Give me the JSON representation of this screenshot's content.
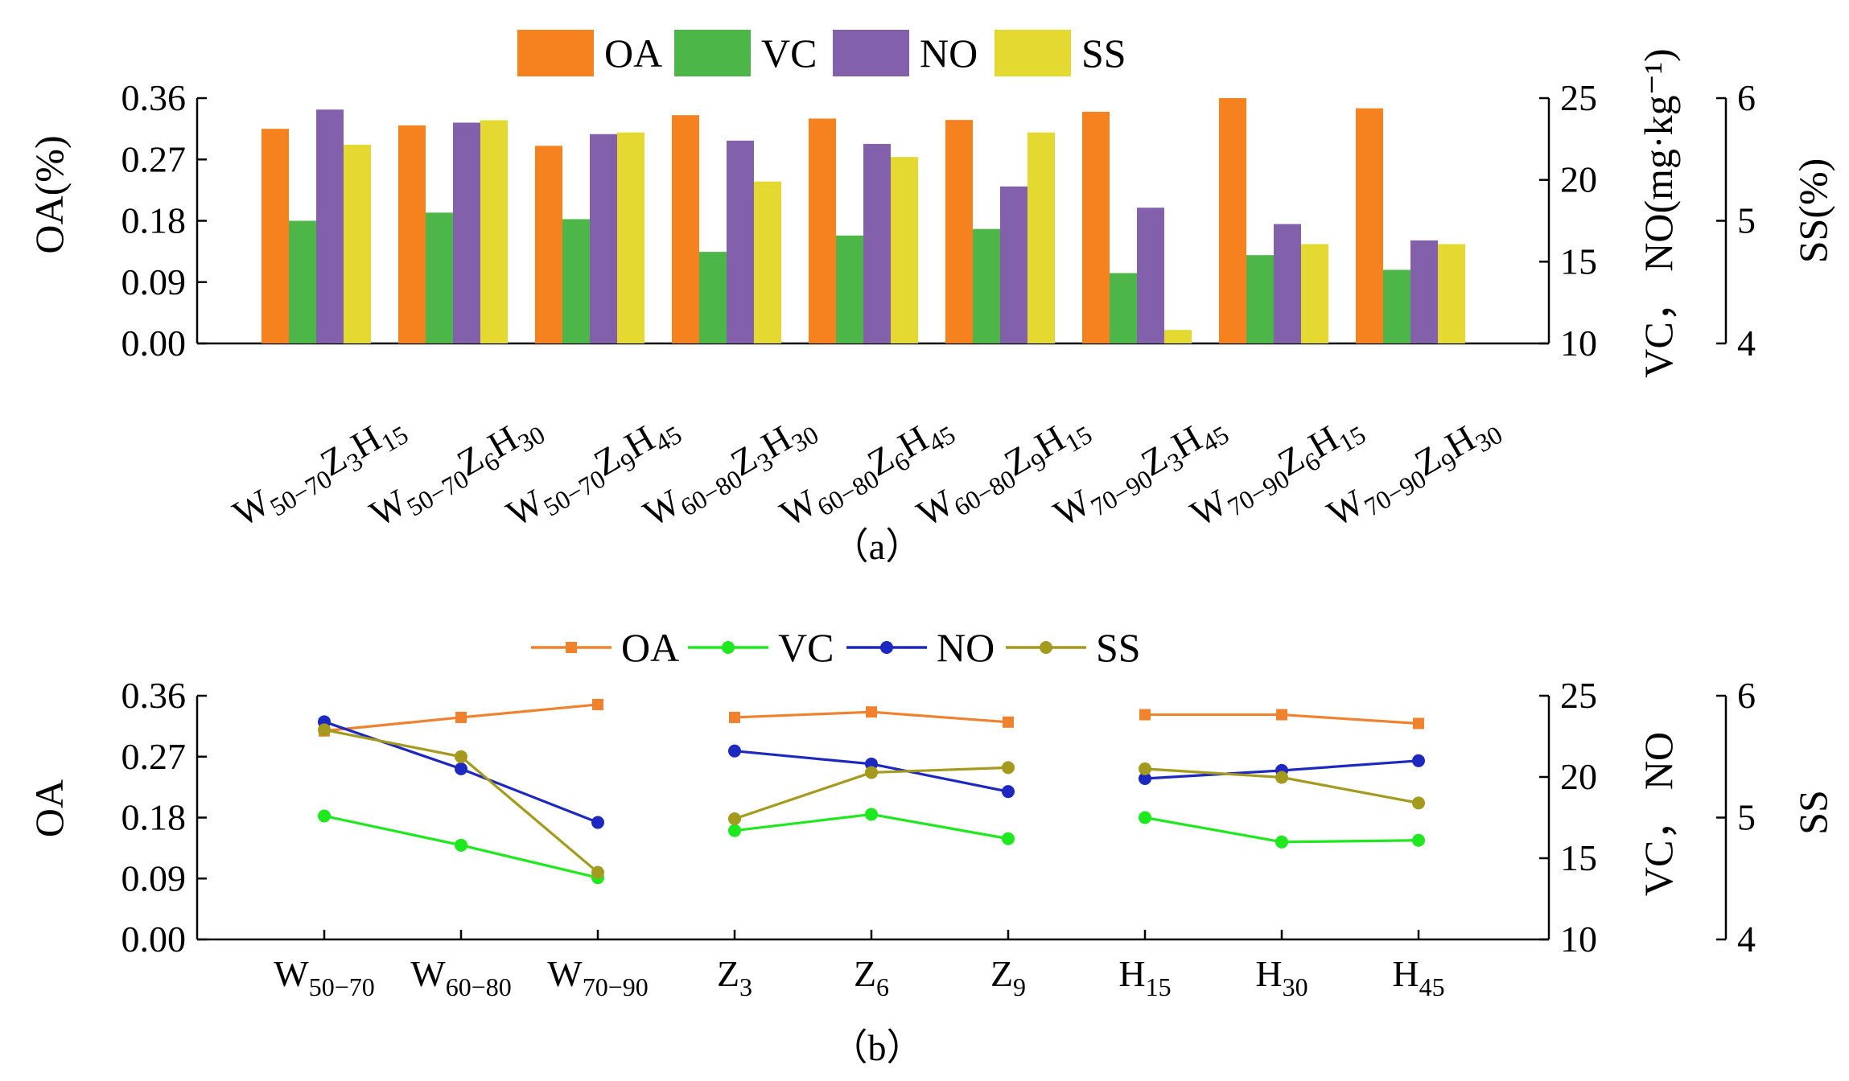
{
  "colors": {
    "bar_OA": "#F5821F",
    "bar_VC": "#4CB748",
    "bar_NO": "#8360AC",
    "bar_SS": "#E4D931",
    "line_OA": "#F0822E",
    "line_VC": "#1EE81E",
    "line_NO": "#1C28C0",
    "line_SS": "#A39A1E",
    "axis": "#000000"
  },
  "chart_data": [
    {
      "id": "a",
      "type": "bar",
      "caption": "（a）",
      "ylabel_left": "OA(%)",
      "ylabel_right1": "VC，  NO(mg·kg⁻¹)",
      "ylabel_right2": "SS(%)",
      "axes": {
        "left": {
          "min": 0,
          "max": 0.36,
          "ticks": [
            "0.00",
            "0.09",
            "0.18",
            "0.27",
            "0.36"
          ]
        },
        "right1": {
          "min": 10,
          "max": 25,
          "ticks": [
            "10",
            "15",
            "20",
            "25"
          ]
        },
        "right2": {
          "min": 4,
          "max": 6,
          "ticks": [
            "4",
            "5",
            "6"
          ]
        }
      },
      "categories": [
        {
          "main1": "W",
          "sub1": "50−70",
          "main2": "Z",
          "sub2": "3",
          "main3": "H",
          "sub3": "15"
        },
        {
          "main1": "W",
          "sub1": "50−70",
          "main2": "Z",
          "sub2": "6",
          "main3": "H",
          "sub3": "30"
        },
        {
          "main1": "W",
          "sub1": "50−70",
          "main2": "Z",
          "sub2": "9",
          "main3": "H",
          "sub3": "45"
        },
        {
          "main1": "W",
          "sub1": "60−80",
          "main2": "Z",
          "sub2": "3",
          "main3": "H",
          "sub3": "30"
        },
        {
          "main1": "W",
          "sub1": "60−80",
          "main2": "Z",
          "sub2": "6",
          "main3": "H",
          "sub3": "45"
        },
        {
          "main1": "W",
          "sub1": "60−80",
          "main2": "Z",
          "sub2": "9",
          "main3": "H",
          "sub3": "15"
        },
        {
          "main1": "W",
          "sub1": "70−90",
          "main2": "Z",
          "sub2": "3",
          "main3": "H",
          "sub3": "45"
        },
        {
          "main1": "W",
          "sub1": "70−90",
          "main2": "Z",
          "sub2": "6",
          "main3": "H",
          "sub3": "15"
        },
        {
          "main1": "W",
          "sub1": "70−90",
          "main2": "Z",
          "sub2": "9",
          "main3": "H",
          "sub3": "30"
        }
      ],
      "series": [
        {
          "name": "OA",
          "axis": "left",
          "values": [
            0.315,
            0.32,
            0.29,
            0.335,
            0.33,
            0.328,
            0.34,
            0.36,
            0.345
          ]
        },
        {
          "name": "VC",
          "axis": "right1",
          "values": [
            17.5,
            18.0,
            17.6,
            15.6,
            16.6,
            17.0,
            14.3,
            15.4,
            14.5
          ]
        },
        {
          "name": "NO",
          "axis": "right1",
          "values": [
            24.3,
            23.5,
            22.8,
            22.4,
            22.2,
            19.6,
            18.3,
            17.3,
            16.3
          ]
        },
        {
          "name": "SS",
          "axis": "right2",
          "values": [
            5.62,
            5.82,
            5.72,
            5.32,
            5.52,
            5.72,
            4.11,
            4.81,
            4.81
          ]
        }
      ]
    },
    {
      "id": "b",
      "type": "line",
      "caption": "（b）",
      "ylabel_left": "OA",
      "ylabel_right1": "VC，  NO",
      "ylabel_right2": "SS",
      "axes": {
        "left": {
          "min": 0,
          "max": 0.36,
          "ticks": [
            "0.00",
            "0.09",
            "0.18",
            "0.27",
            "0.36"
          ]
        },
        "right1": {
          "min": 10,
          "max": 25,
          "ticks": [
            "10",
            "15",
            "20",
            "25"
          ]
        },
        "right2": {
          "min": 4,
          "max": 6,
          "ticks": [
            "4",
            "5",
            "6"
          ]
        }
      },
      "categories": [
        {
          "main": "W",
          "sub": "50−70"
        },
        {
          "main": "W",
          "sub": "60−80"
        },
        {
          "main": "W",
          "sub": "70−90"
        },
        {
          "main": "Z",
          "sub": "3"
        },
        {
          "main": "Z",
          "sub": "6"
        },
        {
          "main": "Z",
          "sub": "9"
        },
        {
          "main": "H",
          "sub": "15"
        },
        {
          "main": "H",
          "sub": "30"
        },
        {
          "main": "H",
          "sub": "45"
        }
      ],
      "groups": [
        [
          0,
          1,
          2
        ],
        [
          3,
          4,
          5
        ],
        [
          6,
          7,
          8
        ]
      ],
      "series": [
        {
          "name": "OA",
          "axis": "left",
          "marker": "square",
          "values": [
            0.308,
            0.328,
            0.347,
            0.328,
            0.336,
            0.321,
            0.332,
            0.332,
            0.319
          ]
        },
        {
          "name": "VC",
          "axis": "right1",
          "marker": "circle",
          "values": [
            17.6,
            15.8,
            13.8,
            16.7,
            17.7,
            16.2,
            17.5,
            16.0,
            16.1
          ]
        },
        {
          "name": "NO",
          "axis": "right1",
          "marker": "circle",
          "values": [
            23.4,
            20.5,
            17.2,
            21.6,
            20.8,
            19.1,
            19.9,
            20.4,
            21.0
          ]
        },
        {
          "name": "SS",
          "axis": "right2",
          "marker": "circle",
          "values": [
            5.72,
            5.5,
            4.55,
            4.99,
            5.37,
            5.41,
            5.4,
            5.33,
            5.12
          ]
        }
      ]
    }
  ]
}
